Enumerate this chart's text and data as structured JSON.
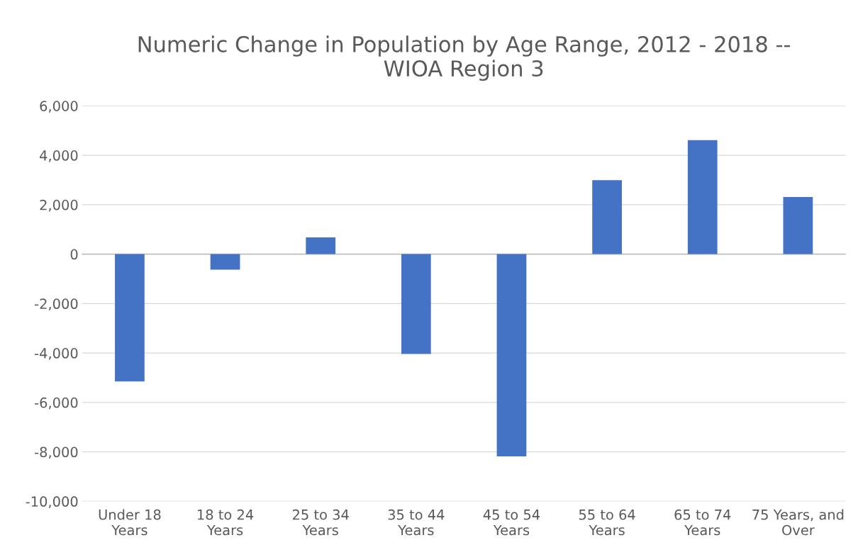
{
  "chart_data": {
    "type": "bar",
    "title": "Numeric Change in Population by Age Range, 2012 - 2018 --\nWIOA Region 3",
    "categories": [
      "Under 18 Years",
      "18 to 24 Years",
      "25 to 34 Years",
      "35 to 44 Years",
      "45 to 54 Years",
      "55 to 64 Years",
      "65 to 74 Years",
      "75 Years, and Over"
    ],
    "values": [
      -5150,
      -630,
      680,
      -4040,
      -8180,
      2990,
      4610,
      2310
    ],
    "color": "#4472c4",
    "ylim": [
      -10000,
      6000
    ],
    "yticks": [
      {
        "value": -10000,
        "label": "-10,000"
      },
      {
        "value": -8000,
        "label": "-8,000"
      },
      {
        "value": -6000,
        "label": "-6,000"
      },
      {
        "value": -4000,
        "label": "-4,000"
      },
      {
        "value": -2000,
        "label": "-2,000"
      },
      {
        "value": 0,
        "label": "0"
      },
      {
        "value": 2000,
        "label": "2,000"
      },
      {
        "value": 4000,
        "label": "4,000"
      },
      {
        "value": 6000,
        "label": "6,000"
      }
    ],
    "grid": "y"
  }
}
